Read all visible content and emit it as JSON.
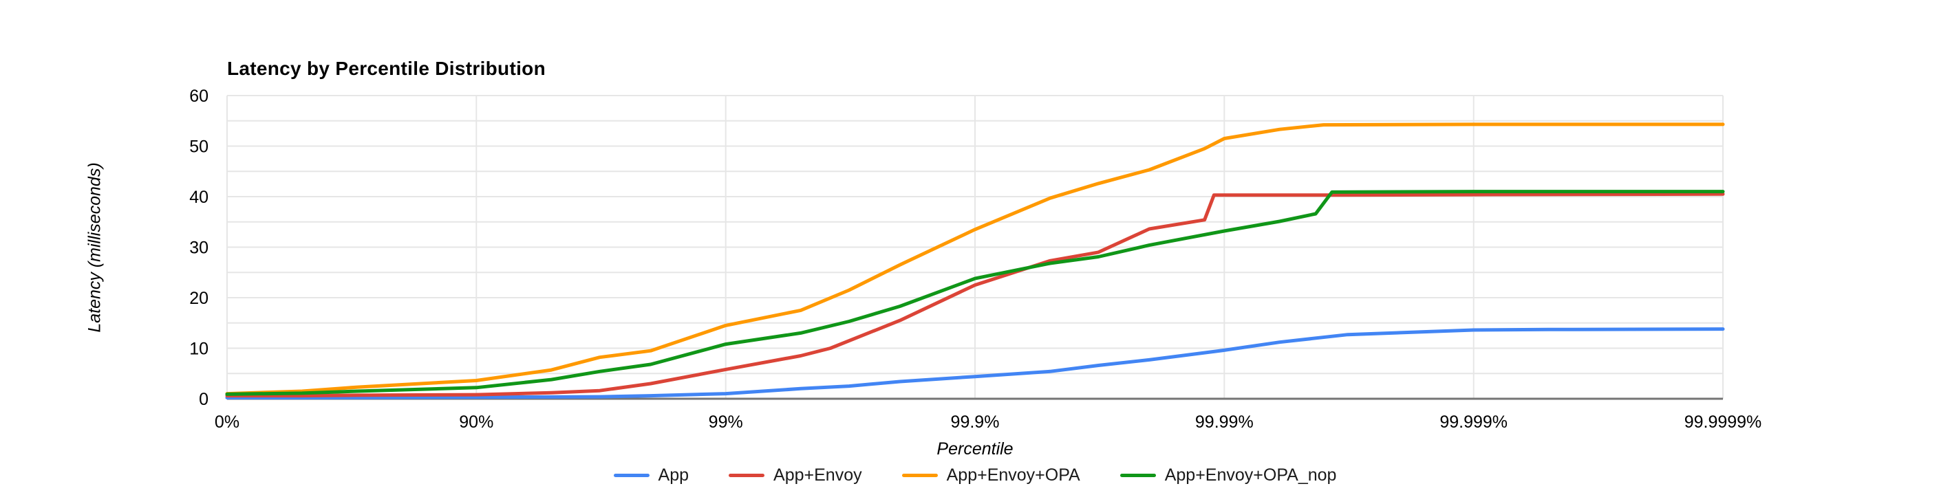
{
  "chart_data": {
    "type": "line",
    "title": "Latency by Percentile Distribution",
    "xlabel": "Percentile",
    "ylabel": "Latency (milliseconds)",
    "x_scale": "log-percentile: x position = -log10(1 - p), decades from 0% to 99.9999%",
    "x_ticks": [
      "0%",
      "90%",
      "99%",
      "99.9%",
      "99.99%",
      "99.999%",
      "99.9999%"
    ],
    "y_ticks": [
      "0",
      "10",
      "20",
      "30",
      "40",
      "50",
      "60"
    ],
    "ylim": [
      0,
      60
    ],
    "y_minor_grid_step": 5,
    "grid": true,
    "legend_position": "bottom",
    "series": [
      {
        "name": "App",
        "color": "#4285F4",
        "points": [
          [
            0,
            0.2
          ],
          [
            50,
            0.2
          ],
          [
            70,
            0.25
          ],
          [
            90,
            0.3
          ],
          [
            95,
            0.35
          ],
          [
            96.8,
            0.4
          ],
          [
            98,
            0.6
          ],
          [
            99,
            1.0
          ],
          [
            99.5,
            2.0
          ],
          [
            99.68,
            2.5
          ],
          [
            99.8,
            3.4
          ],
          [
            99.9,
            4.4
          ],
          [
            99.95,
            5.4
          ],
          [
            99.968,
            6.6
          ],
          [
            99.98,
            7.7
          ],
          [
            99.99,
            9.6
          ],
          [
            99.994,
            11.2
          ],
          [
            99.9968,
            12.7
          ],
          [
            99.999,
            13.6
          ],
          [
            99.9995,
            13.7
          ],
          [
            99.9999,
            13.8
          ]
        ]
      },
      {
        "name": "App+Envoy",
        "color": "#DB4437",
        "points": [
          [
            0,
            0.6
          ],
          [
            50,
            0.6
          ],
          [
            70,
            0.7
          ],
          [
            90,
            0.8
          ],
          [
            95,
            1.2
          ],
          [
            96.8,
            1.6
          ],
          [
            98,
            3.0
          ],
          [
            99,
            5.8
          ],
          [
            99.5,
            8.5
          ],
          [
            99.62,
            10.0
          ],
          [
            99.8,
            15.5
          ],
          [
            99.9,
            22.5
          ],
          [
            99.95,
            27.3
          ],
          [
            99.968,
            29.0
          ],
          [
            99.98,
            33.6
          ],
          [
            99.988,
            35.4
          ],
          [
            99.989,
            40.3
          ],
          [
            99.99,
            40.3
          ],
          [
            99.996,
            40.3
          ],
          [
            99.999,
            40.4
          ],
          [
            99.9999,
            40.5
          ]
        ]
      },
      {
        "name": "App+Envoy+OPA",
        "color": "#FF9900",
        "points": [
          [
            0,
            1.0
          ],
          [
            50,
            1.5
          ],
          [
            70,
            2.3
          ],
          [
            90,
            3.6
          ],
          [
            95,
            5.7
          ],
          [
            96.8,
            8.2
          ],
          [
            98,
            9.5
          ],
          [
            99,
            14.5
          ],
          [
            99.5,
            17.5
          ],
          [
            99.68,
            21.5
          ],
          [
            99.8,
            26.5
          ],
          [
            99.9,
            33.5
          ],
          [
            99.95,
            39.7
          ],
          [
            99.968,
            42.6
          ],
          [
            99.98,
            45.3
          ],
          [
            99.988,
            49.5
          ],
          [
            99.99,
            51.5
          ],
          [
            99.994,
            53.3
          ],
          [
            99.996,
            54.2
          ],
          [
            99.999,
            54.3
          ],
          [
            99.9999,
            54.3
          ]
        ]
      },
      {
        "name": "App+Envoy+OPA_nop",
        "color": "#109618",
        "points": [
          [
            0,
            0.9
          ],
          [
            50,
            1.1
          ],
          [
            70,
            1.5
          ],
          [
            90,
            2.2
          ],
          [
            95,
            3.8
          ],
          [
            96.8,
            5.4
          ],
          [
            98,
            6.8
          ],
          [
            99,
            10.8
          ],
          [
            99.5,
            13.0
          ],
          [
            99.68,
            15.3
          ],
          [
            99.8,
            18.3
          ],
          [
            99.9,
            23.8
          ],
          [
            99.95,
            26.8
          ],
          [
            99.968,
            28.1
          ],
          [
            99.98,
            30.4
          ],
          [
            99.99,
            33.2
          ],
          [
            99.994,
            35.1
          ],
          [
            99.9957,
            36.6
          ],
          [
            99.9963,
            40.9
          ],
          [
            99.999,
            41.0
          ],
          [
            99.9999,
            41.0
          ]
        ]
      }
    ]
  },
  "colors": {
    "grid": "#E6E6E6",
    "baseline": "#757575",
    "tick_text": "#000000"
  }
}
